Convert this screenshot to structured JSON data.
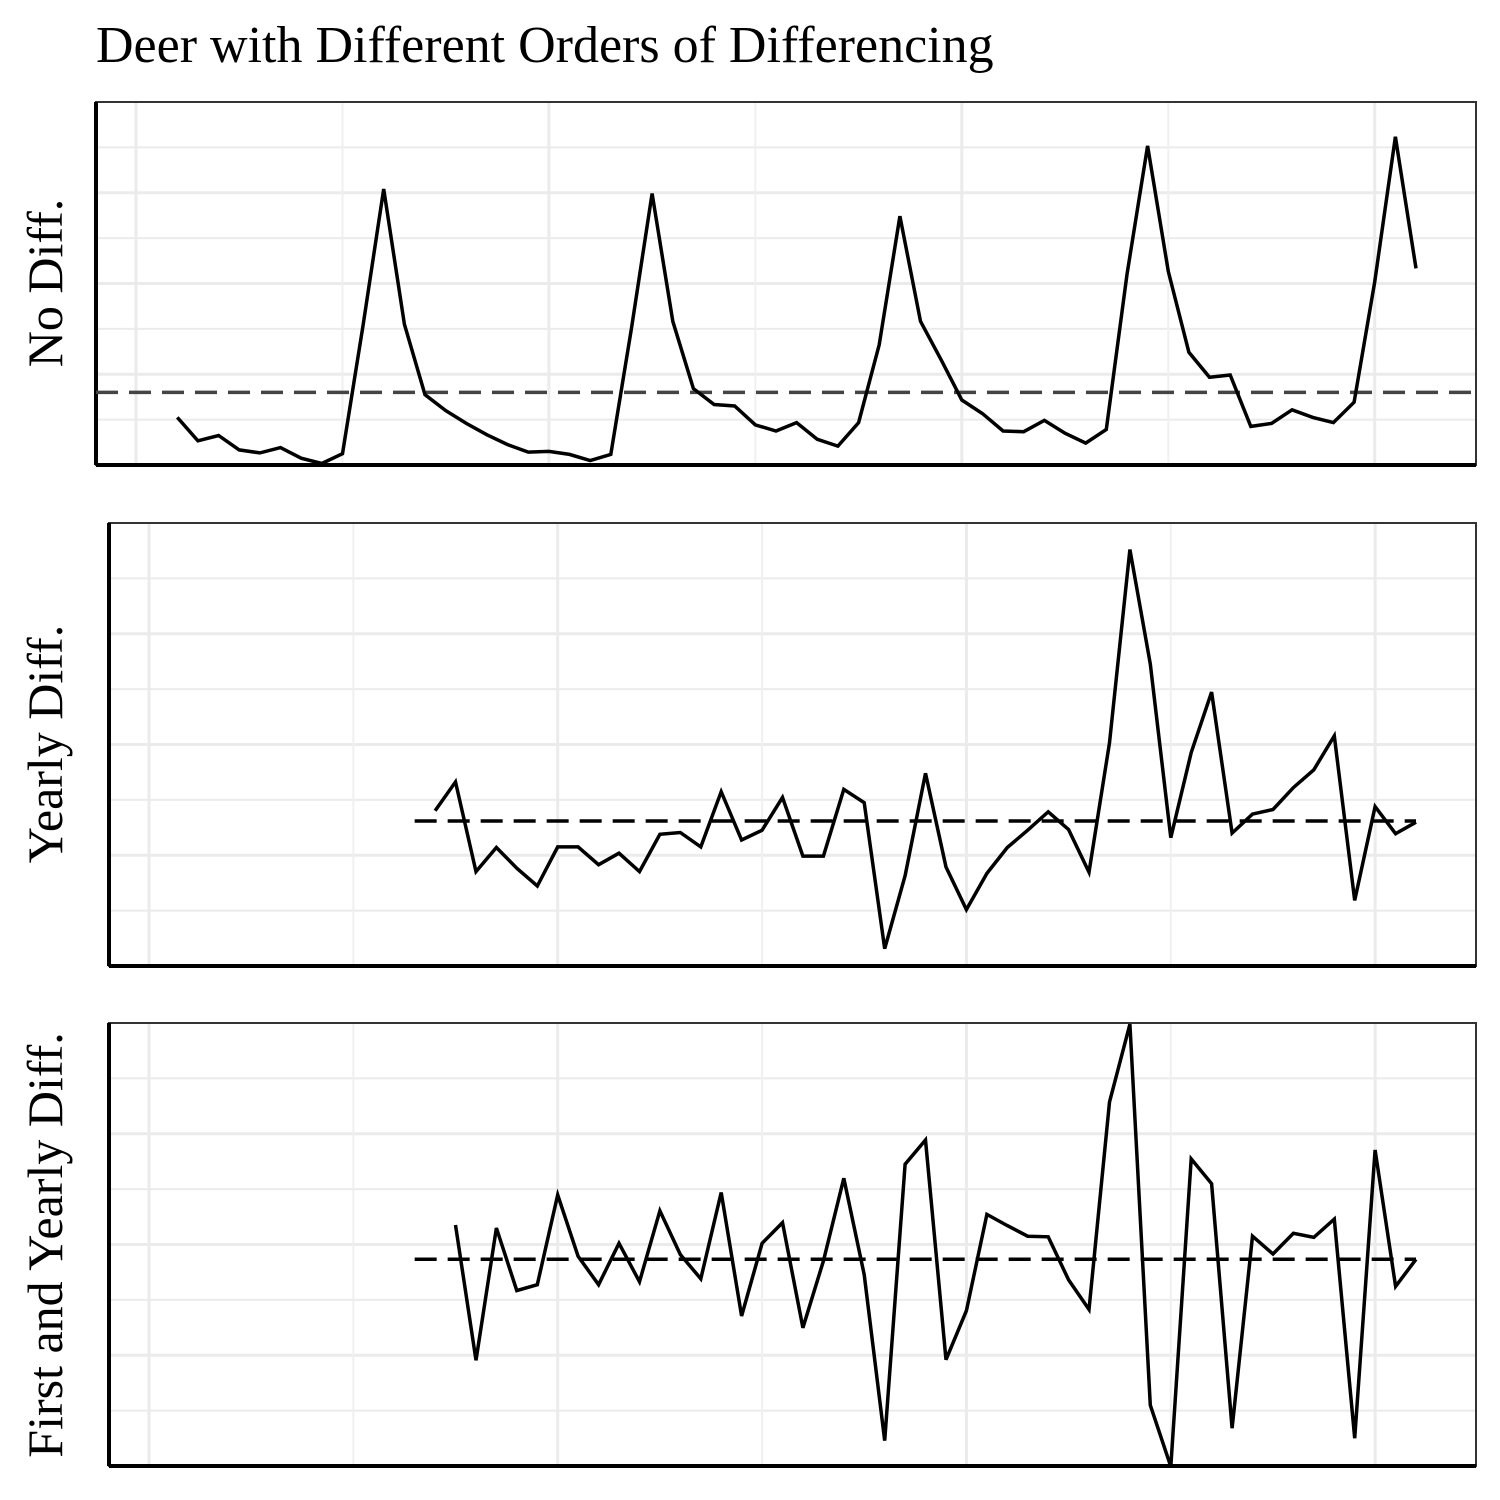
{
  "title": "Deer with Different Orders of Differencing",
  "chart_data": [
    {
      "type": "line",
      "ylabel": "No Diff.",
      "reference_line": 9.6,
      "ylim": [
        0,
        48
      ],
      "x": [
        3,
        4,
        5,
        6,
        7,
        8,
        9,
        10,
        11,
        12,
        13,
        14,
        15,
        16,
        17,
        18,
        19,
        20,
        21,
        22,
        23,
        24,
        25,
        26,
        27,
        28,
        29,
        30,
        31,
        32,
        33,
        34,
        35,
        36,
        37,
        38,
        39,
        40,
        41,
        42,
        43,
        44,
        45,
        46,
        47,
        48,
        49,
        50,
        51,
        52,
        53,
        54,
        55,
        56,
        57,
        58,
        59,
        60,
        61,
        62,
        63
      ],
      "values": [
        6.3,
        3.2,
        3.9,
        2.0,
        1.6,
        2.3,
        0.9,
        0.2,
        1.5,
        18.5,
        36.5,
        18.6,
        9.3,
        7.2,
        5.5,
        4.0,
        2.7,
        1.7,
        1.8,
        1.4,
        0.6,
        1.4,
        18.1,
        35.9,
        19.0,
        10.1,
        8.0,
        7.8,
        5.3,
        4.5,
        5.6,
        3.4,
        2.5,
        5.6,
        15.9,
        32.9,
        19.0,
        13.9,
        8.6,
        6.8,
        4.5,
        4.4,
        5.9,
        4.2,
        2.9,
        4.7,
        25.2,
        42.2,
        25.6,
        14.9,
        11.6,
        11.9,
        5.1,
        5.5,
        7.3,
        6.3,
        5.6,
        8.3,
        24.2,
        43.4,
        26.0
      ],
      "grid": true
    },
    {
      "type": "line",
      "ylabel": "Yearly Diff.",
      "reference_line": 0.2,
      "ylim": [
        -25,
        52
      ],
      "x": [
        15,
        16,
        17,
        18,
        19,
        20,
        21,
        22,
        23,
        24,
        25,
        26,
        27,
        28,
        29,
        30,
        31,
        32,
        33,
        34,
        35,
        36,
        37,
        38,
        39,
        40,
        41,
        42,
        43,
        44,
        45,
        46,
        47,
        48,
        49,
        50,
        51,
        52,
        53,
        54,
        55,
        56,
        57,
        58,
        59,
        60,
        61,
        62,
        63
      ],
      "values": [
        2.0,
        7.0,
        -8.6,
        -4.4,
        -8.0,
        -11.1,
        -4.3,
        -4.3,
        -7.4,
        -5.4,
        -8.6,
        -2.1,
        -1.8,
        -4.3,
        5.3,
        -3.1,
        -1.4,
        4.3,
        -5.9,
        -5.9,
        5.7,
        3.4,
        -22.0,
        -9.3,
        8.5,
        -7.8,
        -15.2,
        -8.9,
        -4.4,
        -1.4,
        1.8,
        -1.3,
        -8.7,
        13.8,
        47.4,
        27.5,
        -2.7,
        12.1,
        22.6,
        -1.9,
        1.4,
        2.2,
        6.0,
        9.1,
        15.0,
        -13.6,
        2.7,
        -2.0,
        0
      ]
    },
    {
      "type": "line",
      "ylabel": "First and Yearly Diff.",
      "reference_line": 0,
      "ylim": [
        -35,
        40
      ],
      "x": [
        16,
        17,
        18,
        19,
        20,
        21,
        22,
        23,
        24,
        25,
        26,
        27,
        28,
        29,
        30,
        31,
        32,
        33,
        34,
        35,
        36,
        37,
        38,
        39,
        40,
        41,
        42,
        43,
        44,
        45,
        46,
        47,
        48,
        49,
        50,
        51,
        52,
        53,
        54,
        55,
        56,
        57,
        58,
        59,
        60,
        61,
        62,
        63
      ],
      "values": [
        5.8,
        -17.1,
        5.3,
        -5.3,
        -4.3,
        10.9,
        0.5,
        -4.3,
        2.7,
        -3.8,
        8.2,
        0.8,
        -3.3,
        11.3,
        -9.6,
        2.7,
        6.2,
        -11.6,
        -0.3,
        13.7,
        -2.6,
        -30.7,
        16.1,
        20.2,
        -17.0,
        -8.7,
        7.6,
        5.7,
        3.9,
        3.8,
        -3.5,
        -8.5,
        26.6,
        39.8,
        -24.7,
        -35.1,
        17.0,
        12.8,
        -28.6,
        3.9,
        0.9,
        4.4,
        3.7,
        6.8,
        -30.3,
        18.5,
        -4.6,
        0
      ]
    }
  ]
}
